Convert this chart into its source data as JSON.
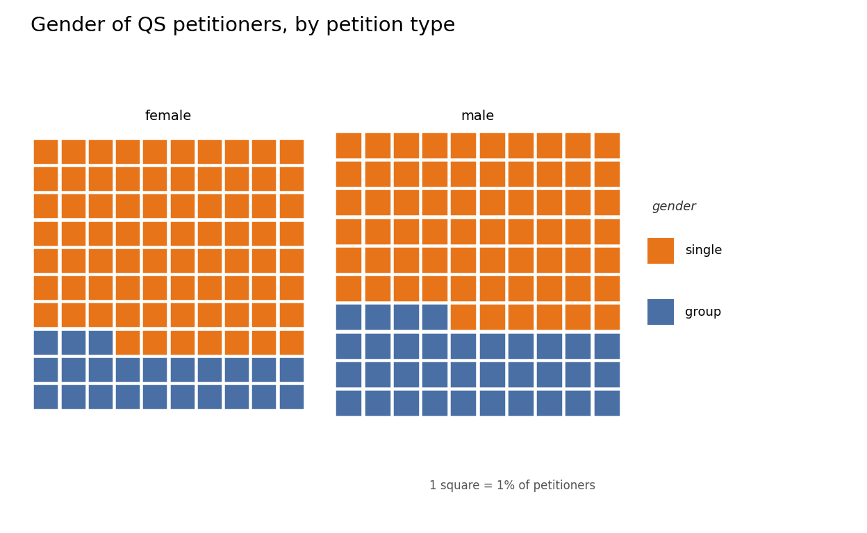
{
  "title": "Gender of QS petitioners, by petition type",
  "title_fontsize": 21,
  "panels": [
    {
      "label": "female",
      "single_pct": 77,
      "group_pct": 23
    },
    {
      "label": "male",
      "single_pct": 66,
      "group_pct": 34
    }
  ],
  "grid_size": 10,
  "color_single": "#E8741A",
  "color_group": "#4A6FA5",
  "color_background": "#FFFFFF",
  "legend_title": "gender",
  "legend_labels": [
    "single",
    "group"
  ],
  "legend_colors": [
    "#E8741A",
    "#4A6FA5"
  ],
  "footnote": "1 square = 1% of petitioners"
}
